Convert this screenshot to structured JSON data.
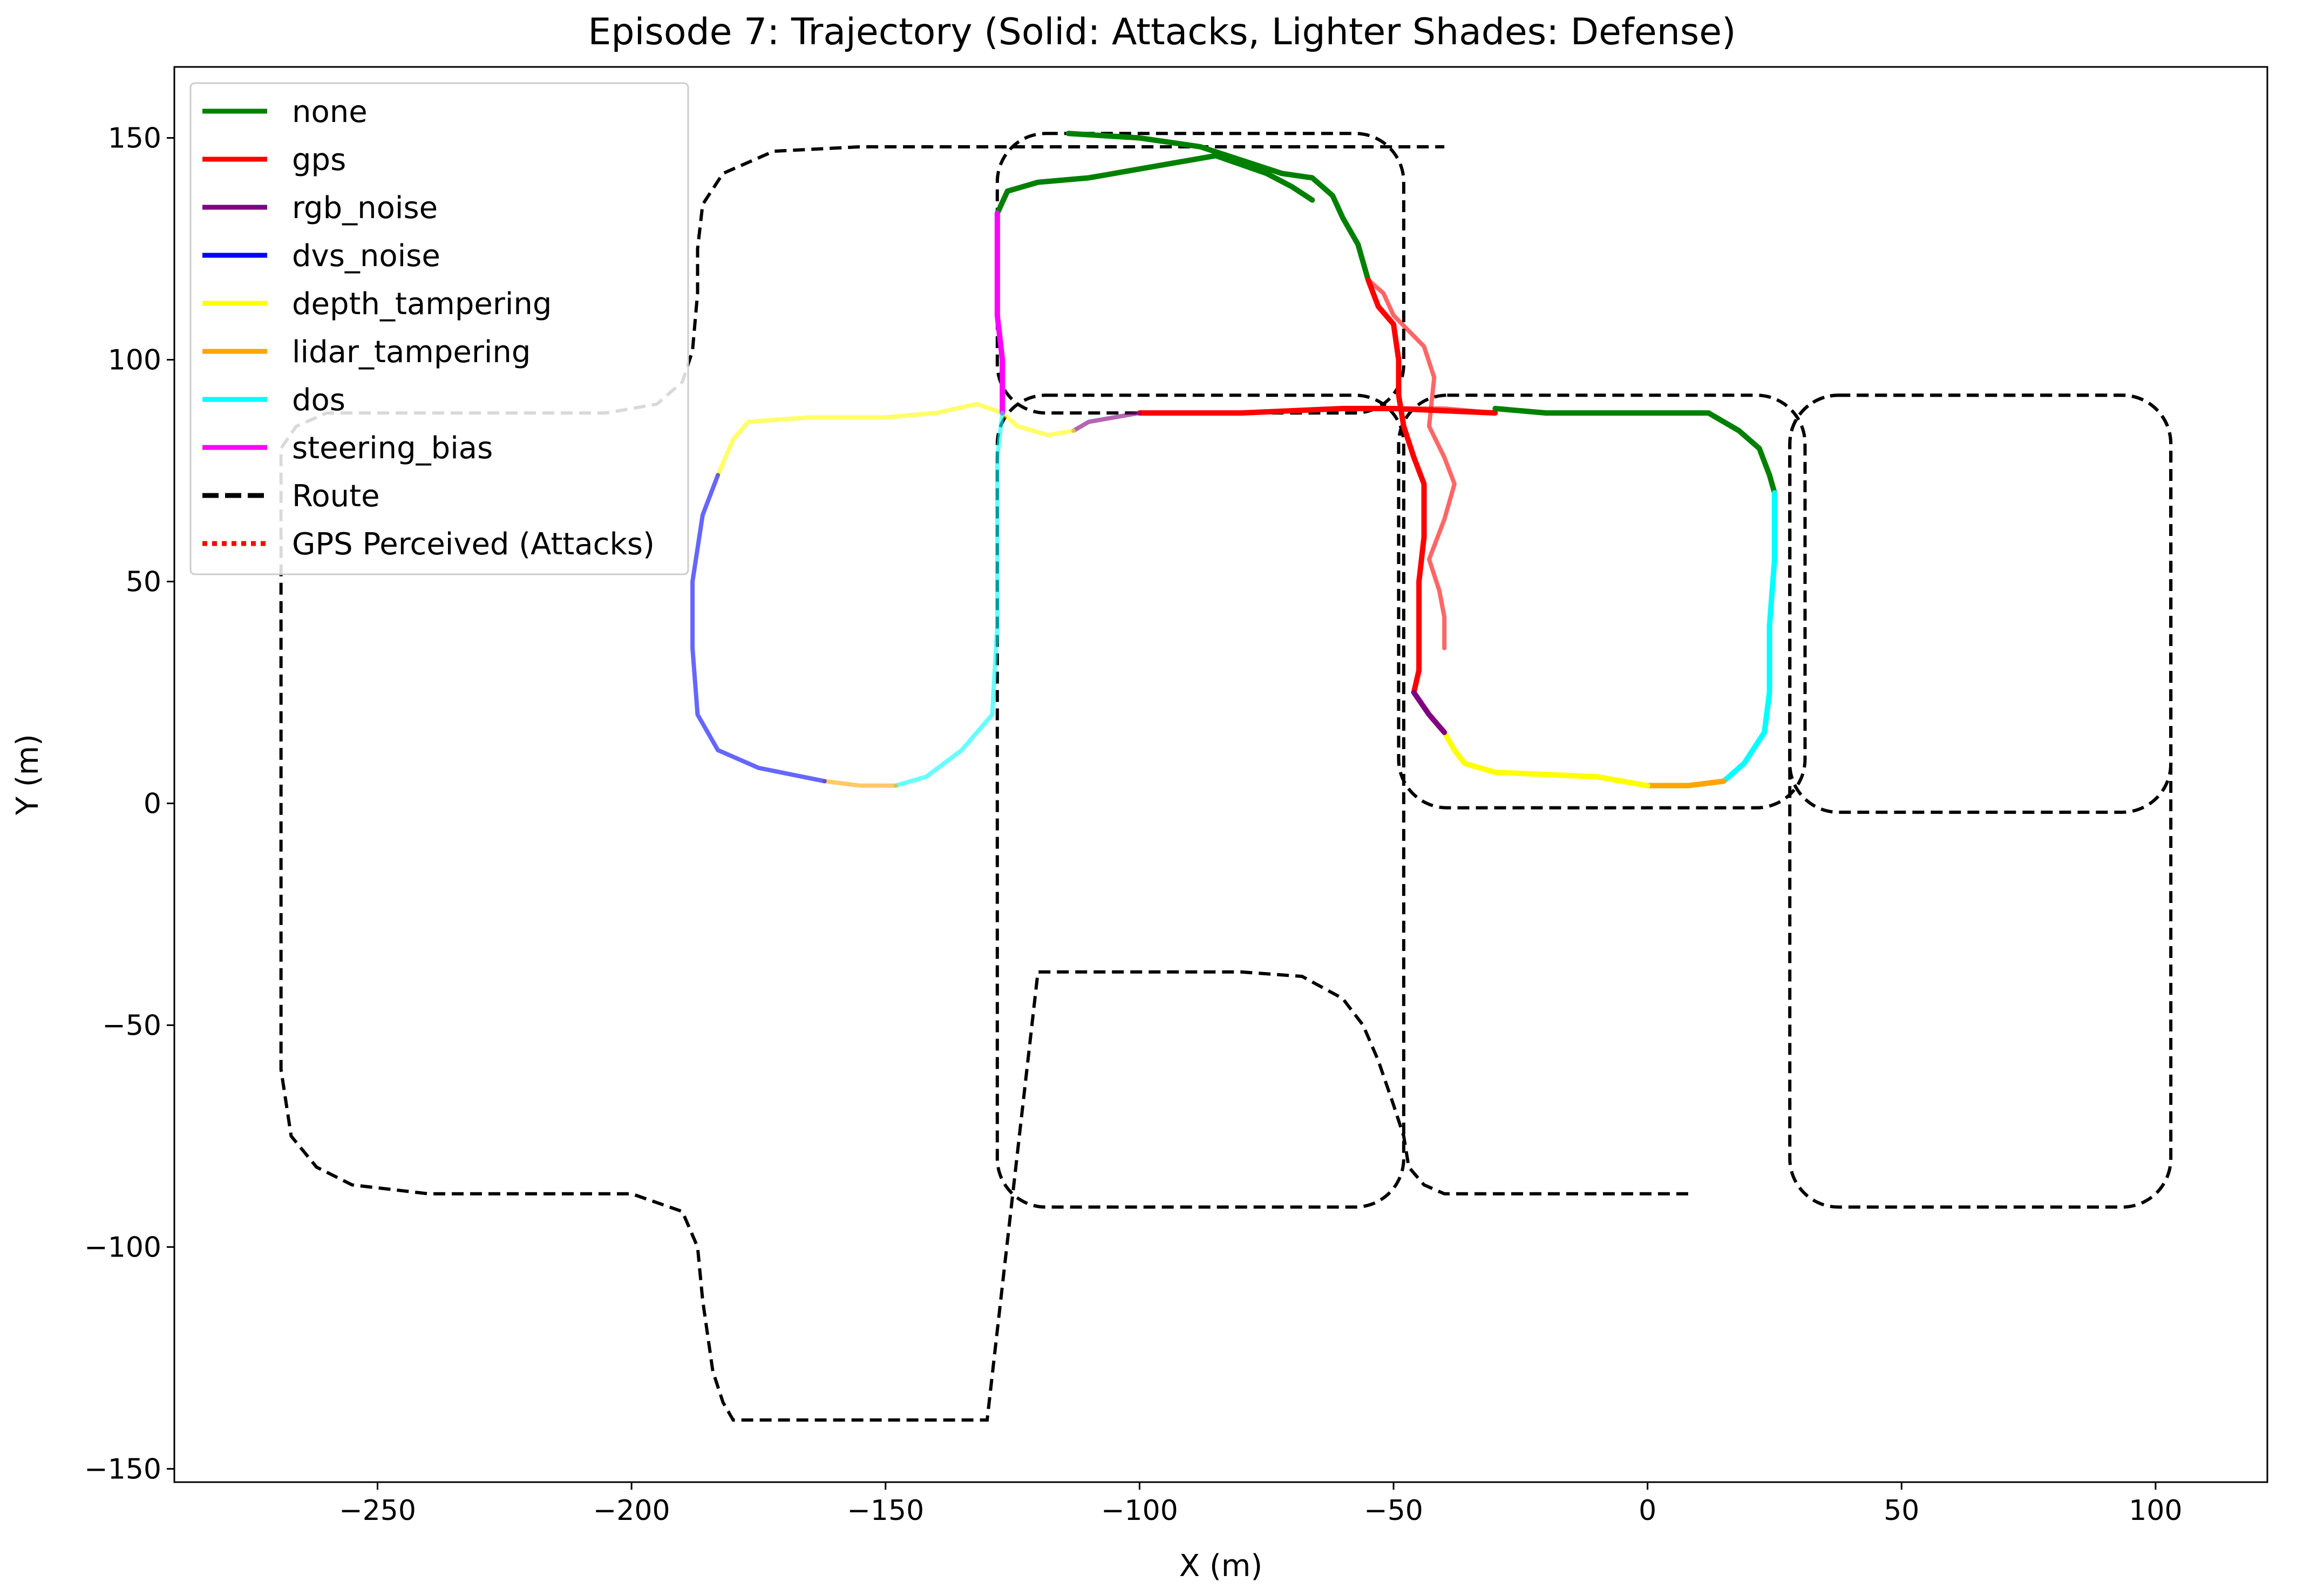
{
  "chart_data": {
    "type": "line",
    "title": "Episode 7: Trajectory (Solid: Attacks, Lighter Shades: Defense)",
    "xlabel": "X (m)",
    "ylabel": "Y (m)",
    "xlim": [
      -290,
      122
    ],
    "ylim": [
      -153,
      166
    ],
    "xticks": [
      -250,
      -200,
      -150,
      -100,
      -50,
      0,
      50,
      100
    ],
    "yticks": [
      -150,
      -100,
      -50,
      0,
      50,
      100,
      150
    ],
    "xtick_labels": [
      "−250",
      "−200",
      "−150",
      "−100",
      "−50",
      "0",
      "50",
      "100"
    ],
    "ytick_labels": [
      "−150",
      "−100",
      "−50",
      "0",
      "50",
      "100",
      "150"
    ],
    "grid": false,
    "legend_position": "upper-left",
    "legend": [
      {
        "label": "none",
        "color": "#008000",
        "style": "solid"
      },
      {
        "label": "gps",
        "color": "#ff0000",
        "style": "solid"
      },
      {
        "label": "rgb_noise",
        "color": "#800080",
        "style": "solid"
      },
      {
        "label": "dvs_noise",
        "color": "#0000ff",
        "style": "solid"
      },
      {
        "label": "depth_tampering",
        "color": "#ffff00",
        "style": "solid"
      },
      {
        "label": "lidar_tampering",
        "color": "#ffa500",
        "style": "solid"
      },
      {
        "label": "dos",
        "color": "#00ffff",
        "style": "solid"
      },
      {
        "label": "steering_bias",
        "color": "#ff00ff",
        "style": "solid"
      },
      {
        "label": "Route",
        "color": "#000000",
        "style": "dashed"
      },
      {
        "label": "GPS Perceived (Attacks)",
        "color": "#ff0000",
        "style": "dotted"
      }
    ],
    "route": [
      [
        8,
        -88
      ],
      [
        -40,
        -88
      ],
      [
        -44,
        -86
      ],
      [
        -47,
        -82
      ],
      [
        -48,
        -75
      ],
      [
        -50,
        -68
      ],
      [
        -53,
        -58
      ],
      [
        -56,
        -50
      ],
      [
        -60,
        -44
      ],
      [
        -68,
        -39
      ],
      [
        -80,
        -38
      ],
      [
        -120,
        -38
      ],
      [
        -130,
        -139
      ],
      [
        -180,
        -139
      ],
      [
        -182,
        -135
      ],
      [
        -184,
        -128
      ],
      [
        -185,
        -120
      ],
      [
        -186,
        -112
      ],
      [
        -187,
        -100
      ],
      [
        -190,
        -92
      ],
      [
        -200,
        -88
      ],
      [
        -240,
        -88
      ],
      [
        -255,
        -86
      ],
      [
        -262,
        -82
      ],
      [
        -267,
        -75
      ],
      [
        -269,
        -60
      ],
      [
        -269,
        80
      ],
      [
        -266,
        85
      ],
      [
        -260,
        88
      ],
      [
        -240,
        88
      ],
      [
        -205,
        88
      ],
      [
        -195,
        90
      ],
      [
        -190,
        95
      ],
      [
        -188,
        102
      ],
      [
        -187,
        115
      ],
      [
        -187,
        125
      ],
      [
        -186,
        135
      ],
      [
        -182,
        142
      ],
      [
        -172,
        147
      ],
      [
        -155,
        148
      ],
      [
        -40,
        148
      ]
    ],
    "route_loops": [
      {
        "x1": -128,
        "x2": -48,
        "y1": 88,
        "y2": 151
      },
      {
        "x1": -128,
        "x2": -48,
        "y1": -91,
        "y2": 92
      },
      {
        "x1": -49,
        "x2": 31,
        "y1": -1,
        "y2": 92
      },
      {
        "x1": 28,
        "x2": 103,
        "y1": -91,
        "y2": 92
      },
      {
        "x1": 28,
        "x2": 103,
        "y1": -2,
        "y2": 92
      }
    ],
    "segments": [
      {
        "attack": "none",
        "defense": false,
        "points": [
          [
            -128,
            133
          ],
          [
            -126,
            138
          ],
          [
            -120,
            140
          ],
          [
            -110,
            141
          ],
          [
            -95,
            144
          ],
          [
            -85,
            146
          ],
          [
            -75,
            142
          ],
          [
            -70,
            139
          ],
          [
            -66,
            136
          ]
        ]
      },
      {
        "attack": "none",
        "defense": false,
        "points": [
          [
            -114,
            151
          ],
          [
            -100,
            150
          ],
          [
            -88,
            148
          ],
          [
            -80,
            145
          ],
          [
            -72,
            142
          ],
          [
            -66,
            141
          ],
          [
            -62,
            137
          ],
          [
            -60,
            132
          ],
          [
            -57,
            126
          ],
          [
            -55,
            118
          ]
        ]
      },
      {
        "attack": "gps",
        "defense": false,
        "points": [
          [
            -55,
            118
          ],
          [
            -53,
            112
          ],
          [
            -50,
            108
          ],
          [
            -49,
            100
          ],
          [
            -49,
            92
          ],
          [
            -48,
            85
          ],
          [
            -46,
            78
          ],
          [
            -44,
            72
          ],
          [
            -44,
            60
          ],
          [
            -45,
            50
          ],
          [
            -45,
            40
          ],
          [
            -45,
            30
          ],
          [
            -46,
            25
          ]
        ]
      },
      {
        "attack": "gps",
        "defense": false,
        "points": [
          [
            -100,
            88
          ],
          [
            -80,
            88
          ],
          [
            -60,
            89
          ],
          [
            -50,
            89
          ],
          [
            -30,
            88
          ]
        ]
      },
      {
        "attack": "none",
        "defense": false,
        "points": [
          [
            -30,
            89
          ],
          [
            -20,
            88
          ],
          [
            0,
            88
          ],
          [
            12,
            88
          ],
          [
            18,
            84
          ],
          [
            22,
            80
          ],
          [
            24,
            74
          ],
          [
            25,
            70
          ]
        ]
      },
      {
        "attack": "dos",
        "defense": false,
        "points": [
          [
            25,
            70
          ],
          [
            25,
            55
          ],
          [
            24,
            40
          ],
          [
            24,
            25
          ],
          [
            23,
            16
          ],
          [
            19,
            9
          ],
          [
            15,
            5
          ]
        ]
      },
      {
        "attack": "lidar_tampering",
        "defense": false,
        "points": [
          [
            15,
            5
          ],
          [
            8,
            4
          ],
          [
            0,
            4
          ]
        ]
      },
      {
        "attack": "depth_tampering",
        "defense": false,
        "points": [
          [
            0,
            4
          ],
          [
            -10,
            6
          ],
          [
            -30,
            7
          ],
          [
            -36,
            9
          ],
          [
            -38,
            12
          ],
          [
            -40,
            16
          ]
        ]
      },
      {
        "attack": "rgb_noise",
        "defense": false,
        "points": [
          [
            -40,
            16
          ],
          [
            -43,
            20
          ],
          [
            -46,
            25
          ]
        ]
      },
      {
        "attack": "rgb_noise",
        "defense": true,
        "points": [
          [
            -113,
            84
          ],
          [
            -110,
            86
          ],
          [
            -100,
            88
          ]
        ]
      },
      {
        "attack": "depth_tampering",
        "defense": true,
        "points": [
          [
            -113,
            84
          ],
          [
            -118,
            83
          ],
          [
            -124,
            85
          ],
          [
            -127,
            88
          ],
          [
            -132,
            90
          ],
          [
            -140,
            88
          ],
          [
            -150,
            87
          ],
          [
            -165,
            87
          ],
          [
            -177,
            86
          ],
          [
            -180,
            82
          ],
          [
            -183,
            74
          ]
        ]
      },
      {
        "attack": "steering_bias",
        "defense": false,
        "points": [
          [
            -127,
            88
          ],
          [
            -127,
            100
          ],
          [
            -128,
            110
          ],
          [
            -128,
            120
          ],
          [
            -128,
            133
          ]
        ]
      },
      {
        "attack": "dos",
        "defense": true,
        "points": [
          [
            -127,
            88
          ],
          [
            -128,
            78
          ],
          [
            -128,
            60
          ],
          [
            -128,
            40
          ],
          [
            -129,
            20
          ],
          [
            -135,
            12
          ],
          [
            -142,
            6
          ],
          [
            -148,
            4
          ]
        ]
      },
      {
        "attack": "lidar_tampering",
        "defense": true,
        "points": [
          [
            -148,
            4
          ],
          [
            -155,
            4
          ],
          [
            -162,
            5
          ]
        ]
      },
      {
        "attack": "dvs_noise",
        "defense": true,
        "points": [
          [
            -162,
            5
          ],
          [
            -175,
            8
          ],
          [
            -183,
            12
          ],
          [
            -187,
            20
          ],
          [
            -188,
            35
          ],
          [
            -188,
            50
          ],
          [
            -186,
            65
          ],
          [
            -183,
            74
          ]
        ]
      },
      {
        "attack": "gps",
        "defense": true,
        "points": [
          [
            -55,
            118
          ],
          [
            -52,
            115
          ],
          [
            -50,
            110
          ],
          [
            -44,
            103
          ],
          [
            -42,
            96
          ],
          [
            -43,
            85
          ],
          [
            -40,
            78
          ],
          [
            -38,
            72
          ],
          [
            -40,
            64
          ],
          [
            -43,
            55
          ],
          [
            -41,
            48
          ],
          [
            -40,
            42
          ],
          [
            -40,
            35
          ]
        ]
      },
      {
        "attack": "gps",
        "defense": true,
        "points": [
          [
            -50,
            89
          ],
          [
            -40,
            89
          ],
          [
            -30,
            88
          ]
        ]
      }
    ]
  }
}
